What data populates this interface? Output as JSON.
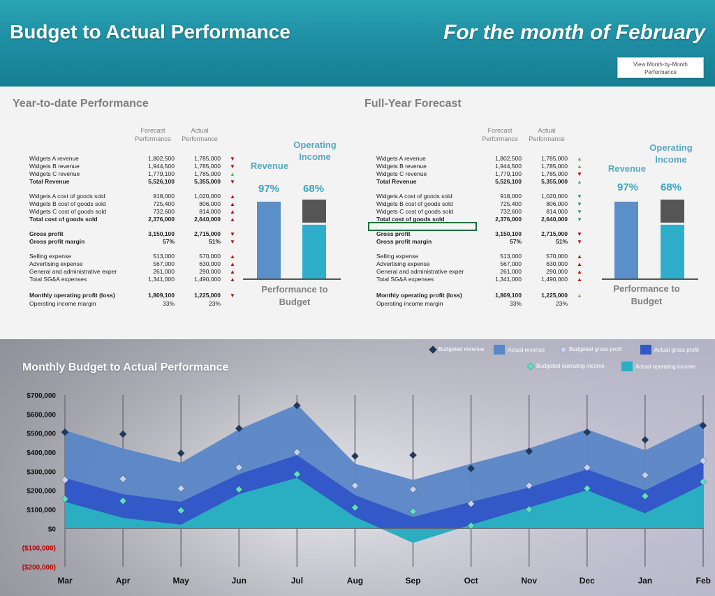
{
  "header": {
    "title": "Budget to Actual Performance",
    "period": "For the month of February",
    "view_button": "View Month-by-Month Performance"
  },
  "ytd": {
    "title": "Year-to-date Performance",
    "col_forecast": "Forecast Performance",
    "col_actual": "Actual Performance",
    "rows": [
      {
        "label": "Widgets A revenue",
        "forecast": "1,802,500",
        "actual": "1,785,000",
        "arrow": "▼",
        "arrow_color": "down-red",
        "bold": false
      },
      {
        "label": "Widgets B revenue",
        "forecast": "1,944,500",
        "actual": "1,785,000",
        "arrow": "▼",
        "arrow_color": "down-red",
        "bold": false
      },
      {
        "label": "Widgets C revenue",
        "forecast": "1,779,100",
        "actual": "1,785,000",
        "arrow": "▲",
        "arrow_color": "up-green",
        "bold": false
      },
      {
        "label": "Total Revenue",
        "forecast": "5,526,100",
        "actual": "5,355,000",
        "arrow": "▼",
        "arrow_color": "down-red",
        "bold": true
      },
      {
        "label": "Widgets A cost of goods sold",
        "forecast": "918,000",
        "actual": "1,020,000",
        "arrow": "▲",
        "arrow_color": "up-red",
        "bold": false
      },
      {
        "label": "Widgets B cost of goods sold",
        "forecast": "725,400",
        "actual": "806,000",
        "arrow": "▲",
        "arrow_color": "up-red",
        "bold": false
      },
      {
        "label": "Widgets C cost of goods sold",
        "forecast": "732,600",
        "actual": "814,000",
        "arrow": "▲",
        "arrow_color": "up-red",
        "bold": false
      },
      {
        "label": "Total cost of goods sold",
        "forecast": "2,376,000",
        "actual": "2,640,000",
        "arrow": "▲",
        "arrow_color": "up-red",
        "bold": true
      },
      {
        "label": "Gross profit",
        "forecast": "3,150,100",
        "actual": "2,715,000",
        "arrow": "▼",
        "arrow_color": "down-red",
        "bold": true
      },
      {
        "label": "Gross profit margin",
        "forecast": "57%",
        "actual": "51%",
        "arrow": "▼",
        "arrow_color": "down-red",
        "bold": true
      },
      {
        "label": "Selling expense",
        "forecast": "513,000",
        "actual": "570,000",
        "arrow": "▲",
        "arrow_color": "up-red",
        "bold": false
      },
      {
        "label": "Advertising expense",
        "forecast": "567,000",
        "actual": "630,000",
        "arrow": "▲",
        "arrow_color": "up-red",
        "bold": false
      },
      {
        "label": "General and administrative exper",
        "forecast": "261,000",
        "actual": "290,000",
        "arrow": "▲",
        "arrow_color": "up-red",
        "bold": false
      },
      {
        "label": "Total SG&A expenses",
        "forecast": "1,341,000",
        "actual": "1,490,000",
        "arrow": "▲",
        "arrow_color": "up-red",
        "bold": false
      },
      {
        "label": "Monthly operating profit (loss)",
        "forecast": "1,809,100",
        "actual": "1,225,000",
        "arrow": "▼",
        "arrow_color": "down-red",
        "bold": true
      },
      {
        "label": "Operating income margin",
        "forecast": "33%",
        "actual": "23%",
        "arrow": "",
        "arrow_color": "",
        "bold": false
      }
    ],
    "perf": {
      "revenue_label": "Revenue",
      "op_income_label": "Operating Income",
      "revenue_pct": "97%",
      "op_income_pct": "68%",
      "revenue_fill": 0.97,
      "op_income_fill": 0.68,
      "footer": "Performance to Budget"
    }
  },
  "fyf": {
    "title": "Full-Year Forecast",
    "col_forecast": "Forecast Performance",
    "col_actual": "Actual Performance",
    "rows": [
      {
        "label": "Widgets A revenue",
        "forecast": "1,802,500",
        "actual": "1,785,000",
        "arrow": "▲",
        "arrow_color": "up-green",
        "bold": false
      },
      {
        "label": "Widgets B revenue",
        "forecast": "1,944,500",
        "actual": "1,785,000",
        "arrow": "▲",
        "arrow_color": "up-green",
        "bold": false
      },
      {
        "label": "Widgets C revenue",
        "forecast": "1,779,100",
        "actual": "1,785,000",
        "arrow": "▼",
        "arrow_color": "down-red",
        "bold": false
      },
      {
        "label": "Total Revenue",
        "forecast": "5,526,100",
        "actual": "5,355,000",
        "arrow": "▲",
        "arrow_color": "up-green",
        "bold": true
      },
      {
        "label": "Widgets A cost of goods sold",
        "forecast": "918,000",
        "actual": "1,020,000",
        "arrow": "▼",
        "arrow_color": "down-green",
        "bold": false
      },
      {
        "label": "Widgets B cost of goods sold",
        "forecast": "725,400",
        "actual": "806,000",
        "arrow": "▼",
        "arrow_color": "down-green",
        "bold": false
      },
      {
        "label": "Widgets C cost of goods sold",
        "forecast": "732,600",
        "actual": "814,000",
        "arrow": "▼",
        "arrow_color": "down-green",
        "bold": false
      },
      {
        "label": "Total cost of goods sold",
        "forecast": "2,376,000",
        "actual": "2,640,000",
        "arrow": "▼",
        "arrow_color": "down-green",
        "bold": true
      },
      {
        "label": "Gross profit",
        "forecast": "3,150,100",
        "actual": "2,715,000",
        "arrow": "▼",
        "arrow_color": "down-red",
        "bold": true
      },
      {
        "label": "Gross profit margin",
        "forecast": "57%",
        "actual": "51%",
        "arrow": "▼",
        "arrow_color": "down-red",
        "bold": true
      },
      {
        "label": "Selling expense",
        "forecast": "513,000",
        "actual": "570,000",
        "arrow": "▲",
        "arrow_color": "up-red",
        "bold": false
      },
      {
        "label": "Advertising expense",
        "forecast": "567,000",
        "actual": "630,000",
        "arrow": "▲",
        "arrow_color": "up-red",
        "bold": false
      },
      {
        "label": "General and administrative exper",
        "forecast": "261,000",
        "actual": "290,000",
        "arrow": "▲",
        "arrow_color": "up-red",
        "bold": false
      },
      {
        "label": "Total SG&A expenses",
        "forecast": "1,341,000",
        "actual": "1,490,000",
        "arrow": "▲",
        "arrow_color": "up-red",
        "bold": false
      },
      {
        "label": "Monthly operating profit (loss)",
        "forecast": "1,809,100",
        "actual": "1,225,000",
        "arrow": "▲",
        "arrow_color": "up-green",
        "bold": true
      },
      {
        "label": "Operating income margin",
        "forecast": "33%",
        "actual": "23%",
        "arrow": "",
        "arrow_color": "",
        "bold": false
      }
    ],
    "perf": {
      "revenue_label": "Revenue",
      "op_income_label": "Operating Income",
      "revenue_pct": "97%",
      "op_income_pct": "68%",
      "revenue_fill": 0.97,
      "op_income_fill": 0.68,
      "footer": "Performance to Budget"
    }
  },
  "colors": {
    "revenue_bar": "#5b8fc9",
    "op_income_bar": "#2eaecb",
    "op_income_gap": "#555555",
    "actual_revenue": "#5a86c6",
    "actual_gross_profit": "#3358c7",
    "actual_operating_income": "#2aaec2",
    "budgeted_revenue": "#1f3a5f",
    "budgeted_gross_profit": "#c9d2f0",
    "budgeted_operating_income": "#5fe0c0"
  },
  "chart_data": {
    "type": "area",
    "title": "Monthly Budget to Actual Performance",
    "categories": [
      "Mar",
      "Apr",
      "May",
      "Jun",
      "Jul",
      "Aug",
      "Sep",
      "Oct",
      "Nov",
      "Dec",
      "Jan",
      "Feb"
    ],
    "ylim": [
      -200000,
      700000
    ],
    "yticks": [
      700000,
      600000,
      500000,
      400000,
      300000,
      200000,
      100000,
      0,
      -100000,
      -200000
    ],
    "ytick_labels": [
      "$700,000",
      "$600,000",
      "$500,000",
      "$400,000",
      "$300,000",
      "$200,000",
      "$100,000",
      "$0",
      "($100,000)",
      "($200,000)"
    ],
    "legend_placement": "top-right",
    "series": [
      {
        "name": "Actual revenue",
        "kind": "area",
        "values": [
          515000,
          420000,
          345000,
          520000,
          650000,
          340000,
          255000,
          340000,
          420000,
          520000,
          410000,
          560000
        ]
      },
      {
        "name": "Actual gross profit",
        "kind": "area",
        "values": [
          265000,
          180000,
          140000,
          285000,
          385000,
          175000,
          60000,
          140000,
          215000,
          310000,
          200000,
          350000
        ]
      },
      {
        "name": "Actual operating income",
        "kind": "area",
        "values": [
          140000,
          55000,
          20000,
          180000,
          265000,
          60000,
          -75000,
          20000,
          110000,
          200000,
          80000,
          230000
        ]
      },
      {
        "name": "Budgeted revenue",
        "kind": "marker",
        "values": [
          505000,
          495000,
          395000,
          525000,
          645000,
          380000,
          385000,
          315000,
          405000,
          505000,
          465000,
          540000
        ]
      },
      {
        "name": "Budgeted gross profit",
        "kind": "marker",
        "values": [
          255000,
          260000,
          210000,
          320000,
          400000,
          225000,
          205000,
          130000,
          225000,
          320000,
          280000,
          355000
        ]
      },
      {
        "name": "Budgeted operating income",
        "kind": "marker",
        "values": [
          155000,
          145000,
          95000,
          205000,
          285000,
          110000,
          90000,
          15000,
          100000,
          210000,
          170000,
          245000
        ]
      }
    ]
  }
}
